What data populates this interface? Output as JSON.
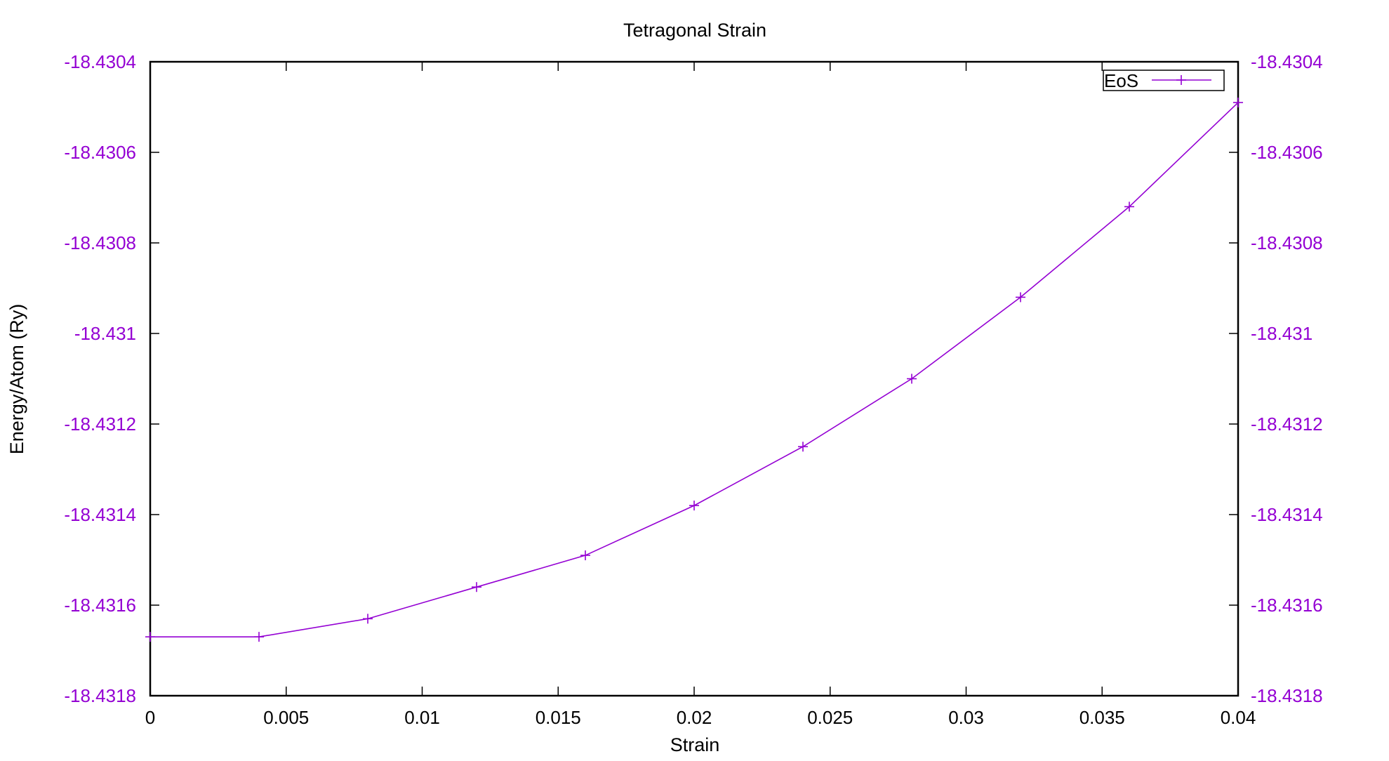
{
  "chart_data": {
    "type": "line",
    "title": "Tetragonal Strain",
    "xlabel": "Strain",
    "ylabel": "Energy/Atom (Ry)",
    "xlim": [
      0,
      0.04
    ],
    "ylim": [
      -18.4318,
      -18.4304
    ],
    "x_ticks": [
      "0",
      "0.005",
      "0.01",
      "0.015",
      "0.02",
      "0.025",
      "0.03",
      "0.035",
      "0.04"
    ],
    "x_tick_values": [
      0,
      0.005,
      0.01,
      0.015,
      0.02,
      0.025,
      0.03,
      0.035,
      0.04
    ],
    "y_ticks": [
      "-18.4304",
      "-18.4306",
      "-18.4308",
      "-18.431",
      "-18.4312",
      "-18.4314",
      "-18.4316",
      "-18.4318"
    ],
    "y_tick_values": [
      -18.4304,
      -18.4306,
      -18.4308,
      -18.431,
      -18.4312,
      -18.4314,
      -18.4316,
      -18.4318
    ],
    "y2_ticks": [
      "-18.4304",
      "-18.4306",
      "-18.4308",
      "-18.431",
      "-18.4312",
      "-18.4314",
      "-18.4316",
      "-18.4318"
    ],
    "grid": false,
    "legend_position": "top-right",
    "series": [
      {
        "name": "EoS",
        "color": "#9400d3",
        "marker": "plus",
        "x": [
          0,
          0.004,
          0.008,
          0.012,
          0.016,
          0.02,
          0.024,
          0.028,
          0.032,
          0.036,
          0.04
        ],
        "y": [
          -18.43167,
          -18.43167,
          -18.43163,
          -18.43156,
          -18.43149,
          -18.43138,
          -18.43125,
          -18.4311,
          -18.43092,
          -18.43072,
          -18.43049
        ]
      }
    ],
    "colors": {
      "tick_label": "#9400d3",
      "axis": "#000000",
      "text": "#000000"
    }
  }
}
